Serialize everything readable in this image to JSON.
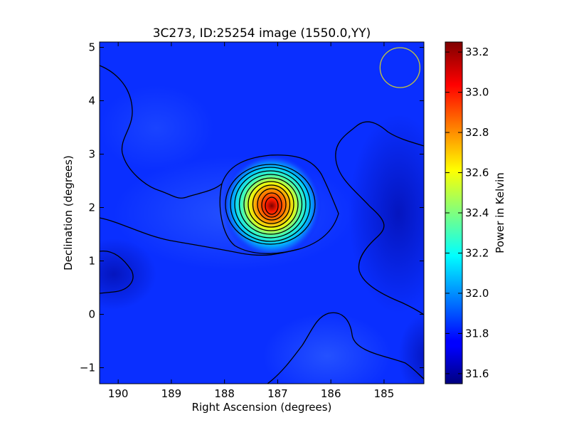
{
  "chart_data": {
    "type": "heatmap",
    "title": "3C273, ID:25254 image (1550.0,YY)",
    "xlabel": "Right Ascension (degrees)",
    "ylabel": "Declination (degrees)",
    "xlim": [
      190.35,
      184.25
    ],
    "ylim": [
      -1.3,
      5.1
    ],
    "x_inverted": true,
    "xticks": [
      190,
      189,
      188,
      187,
      186,
      185
    ],
    "yticks": [
      -1,
      0,
      1,
      2,
      3,
      4,
      5
    ],
    "colorbar": {
      "label": "Power in Kelvin",
      "range": [
        31.55,
        33.25
      ],
      "ticks": [
        "31.6",
        "31.8",
        "32.0",
        "32.2",
        "32.4",
        "32.6",
        "32.8",
        "33.0",
        "33.2"
      ],
      "colormap": "jet"
    },
    "source_peak": {
      "ra": 187.1,
      "dec": 2.0,
      "value": 33.25
    },
    "background_value": 31.8,
    "contour_count": 11,
    "beam_marker": {
      "ra": 184.7,
      "dec": 4.62,
      "color": "#c8c838"
    }
  }
}
